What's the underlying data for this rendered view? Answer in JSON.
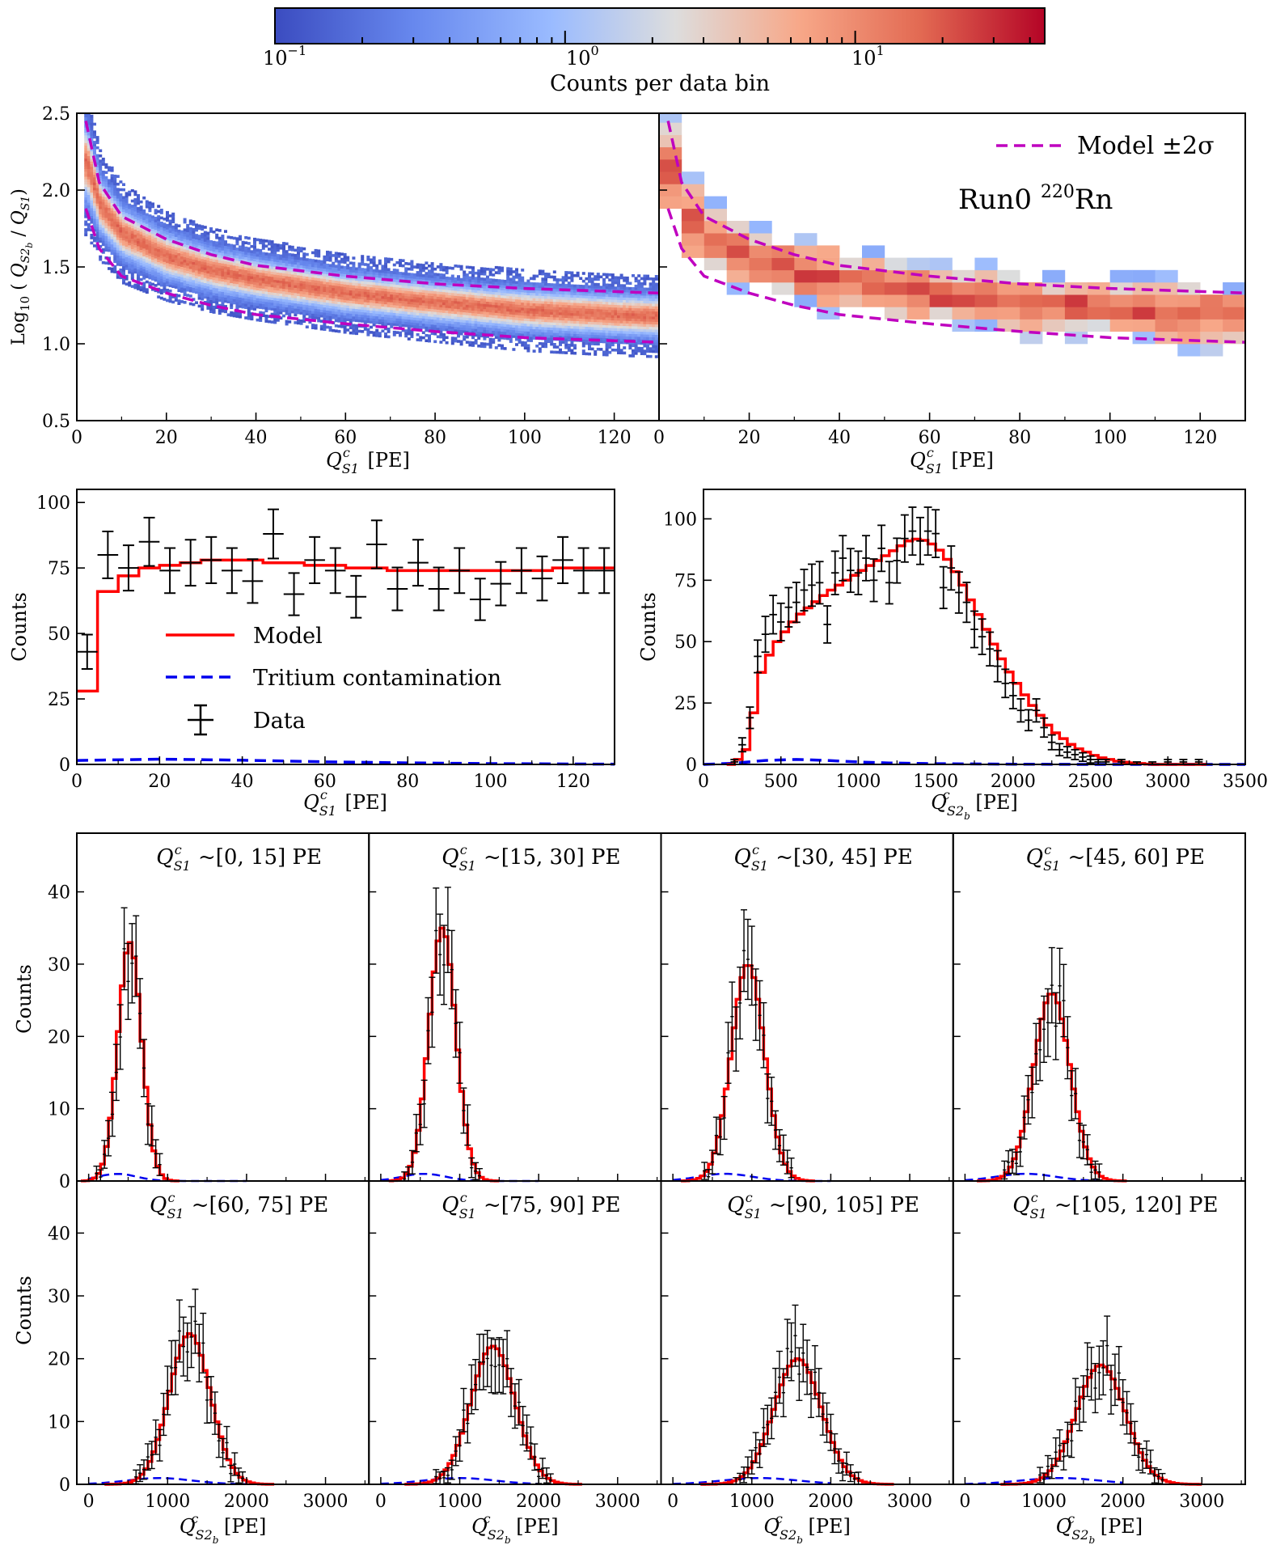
{
  "colorbar": {
    "label": "Counts per data bin",
    "scale": "log",
    "range": [
      0.1,
      45
    ],
    "tick_labels": [
      "10",
      "10",
      "10"
    ],
    "tick_exponents": [
      "−1",
      "0",
      "1"
    ],
    "colors": {
      "low": "#3b4cc0",
      "mid": "#dddddd",
      "high": "#b40426"
    }
  },
  "chart_data": [
    {
      "id": "hist2d-sim",
      "type": "heatmap",
      "xlabel": "Q^c_S1 [PE]",
      "ylabel": "Log10 ( Q^c_S2b / Q^c_S1)",
      "xlim": [
        0,
        130
      ],
      "ylim": [
        0.5,
        2.5
      ],
      "xticks": [
        "0",
        "20",
        "40",
        "60",
        "80",
        "100",
        "120"
      ],
      "yticks": [
        "0.5",
        "1.0",
        "1.5",
        "2.0",
        "2.5"
      ],
      "band": {
        "median": [
          [
            2,
            2.18
          ],
          [
            5,
            1.9
          ],
          [
            10,
            1.72
          ],
          [
            20,
            1.57
          ],
          [
            30,
            1.48
          ],
          [
            40,
            1.42
          ],
          [
            60,
            1.33
          ],
          [
            80,
            1.27
          ],
          [
            100,
            1.22
          ],
          [
            120,
            1.19
          ],
          [
            130,
            1.18
          ]
        ],
        "upper": [
          [
            2,
            2.45
          ],
          [
            5,
            2.05
          ],
          [
            10,
            1.83
          ],
          [
            20,
            1.68
          ],
          [
            30,
            1.58
          ],
          [
            40,
            1.51
          ],
          [
            60,
            1.44
          ],
          [
            80,
            1.39
          ],
          [
            100,
            1.36
          ],
          [
            120,
            1.34
          ],
          [
            130,
            1.33
          ]
        ],
        "lower": [
          [
            2,
            1.88
          ],
          [
            5,
            1.62
          ],
          [
            10,
            1.44
          ],
          [
            20,
            1.33
          ],
          [
            30,
            1.25
          ],
          [
            40,
            1.19
          ],
          [
            60,
            1.13
          ],
          [
            80,
            1.08
          ],
          [
            100,
            1.04
          ],
          [
            120,
            1.02
          ],
          [
            130,
            1.01
          ]
        ]
      }
    },
    {
      "id": "hist2d-data",
      "type": "heatmap",
      "xlabel": "Q^c_S1 [PE]",
      "xlim": [
        0,
        130
      ],
      "ylim": [
        0.5,
        2.5
      ],
      "xticks": [
        "0",
        "20",
        "40",
        "60",
        "80",
        "100",
        "120"
      ],
      "legend": {
        "entry": "Model ±2σ",
        "location": "top-right"
      },
      "annotation": "Run0 ",
      "annotation_super": "220",
      "annotation_tail": "Rn"
    },
    {
      "id": "s1-spectrum",
      "type": "line",
      "xlabel": "Q^c_S1 [PE]",
      "ylabel": "Counts",
      "xlim": [
        0,
        130
      ],
      "ylim": [
        0,
        105
      ],
      "xticks": [
        "0",
        "20",
        "40",
        "60",
        "80",
        "100",
        "120"
      ],
      "yticks": [
        "0",
        "25",
        "50",
        "75",
        "100"
      ],
      "legend": {
        "model": "Model",
        "tritium": "Tritium contamination",
        "data": "Data"
      },
      "model_steps": {
        "edges": [
          0,
          5,
          10,
          15,
          20,
          25,
          30,
          35,
          40,
          45,
          50,
          55,
          60,
          65,
          70,
          75,
          80,
          85,
          90,
          95,
          100,
          105,
          110,
          115,
          120,
          125,
          130
        ],
        "values": [
          28,
          66,
          72,
          75,
          76,
          77,
          78,
          78,
          78,
          77,
          77,
          76,
          76,
          75,
          75,
          74,
          74,
          74,
          74,
          74,
          74,
          74,
          74,
          75,
          75,
          75
        ]
      },
      "tritium": {
        "x": [
          0,
          20,
          40,
          60,
          80,
          100,
          130
        ],
        "y": [
          1.5,
          2.0,
          1.6,
          1.0,
          0.6,
          0.3,
          0.1
        ]
      },
      "data": {
        "x": [
          2.5,
          7.5,
          12.5,
          17.5,
          22.5,
          27.5,
          32.5,
          37.5,
          42.5,
          47.5,
          52.5,
          57.5,
          62.5,
          67.5,
          72.5,
          77.5,
          82.5,
          87.5,
          92.5,
          97.5,
          102.5,
          107.5,
          112.5,
          117.5,
          122.5,
          127.5
        ],
        "y": [
          43,
          80,
          75,
          85,
          74,
          77,
          78,
          74,
          70,
          88,
          65,
          78,
          74,
          64,
          84,
          67,
          77,
          67,
          74,
          63,
          69,
          74,
          71,
          78,
          74,
          74
        ]
      }
    },
    {
      "id": "s2-spectrum",
      "type": "line",
      "xlabel": "Q^c_S2b [PE]",
      "ylabel": "Counts",
      "xlim": [
        0,
        3500
      ],
      "ylim": [
        0,
        112
      ],
      "xticks": [
        "0",
        "500",
        "1000",
        "1500",
        "2000",
        "2500",
        "3000",
        "3500"
      ],
      "yticks": [
        "0",
        "25",
        "50",
        "75",
        "100"
      ],
      "data": {
        "x": [
          200,
          250,
          300,
          350,
          400,
          450,
          500,
          550,
          600,
          650,
          700,
          750,
          800,
          850,
          900,
          950,
          1000,
          1050,
          1100,
          1150,
          1200,
          1250,
          1300,
          1350,
          1400,
          1450,
          1500,
          1550,
          1600,
          1650,
          1700,
          1750,
          1800,
          1850,
          1900,
          1950,
          2000,
          2050,
          2100,
          2150,
          2200,
          2250,
          2300,
          2350,
          2400,
          2450,
          2500,
          2550,
          2600,
          2700,
          2800,
          2900,
          3000,
          3100,
          3200
        ],
        "y": [
          1,
          8,
          19,
          44,
          53,
          61,
          58,
          64,
          66,
          71,
          73,
          74,
          57,
          78,
          84,
          79,
          78,
          84,
          75,
          88,
          74,
          83,
          92,
          95,
          91,
          95,
          94,
          72,
          80,
          70,
          66,
          55,
          52,
          47,
          40,
          33,
          28,
          22,
          18,
          22,
          15,
          9,
          6,
          5,
          4,
          3,
          2,
          1,
          1,
          1,
          0,
          0,
          1,
          1,
          1
        ]
      }
    },
    {
      "id": "slices",
      "type": "line",
      "xlabel": "Q^c_S2b [PE]",
      "ylabel": "Counts",
      "xlim": [
        -150,
        3550
      ],
      "ylim": [
        0,
        47
      ],
      "xticks": [
        "0",
        "1000",
        "2000",
        "3000"
      ],
      "yticks": [
        "0",
        "10",
        "20",
        "30",
        "40"
      ],
      "panels": [
        {
          "title": "~[0, 15] PE",
          "mu": 520,
          "sigma": 150,
          "amp": 33
        },
        {
          "title": "~[15, 30] PE",
          "mu": 780,
          "sigma": 170,
          "amp": 35
        },
        {
          "title": "~[30, 45] PE",
          "mu": 950,
          "sigma": 210,
          "amp": 30
        },
        {
          "title": "~[45, 60] PE",
          "mu": 1100,
          "sigma": 230,
          "amp": 26
        },
        {
          "title": "~[60, 75] PE",
          "mu": 1280,
          "sigma": 260,
          "amp": 24
        },
        {
          "title": "~[75, 90] PE",
          "mu": 1420,
          "sigma": 280,
          "amp": 22
        },
        {
          "title": "~[90, 105] PE",
          "mu": 1580,
          "sigma": 300,
          "amp": 20
        },
        {
          "title": "~[105, 120] PE",
          "mu": 1720,
          "sigma": 310,
          "amp": 19
        }
      ]
    }
  ]
}
